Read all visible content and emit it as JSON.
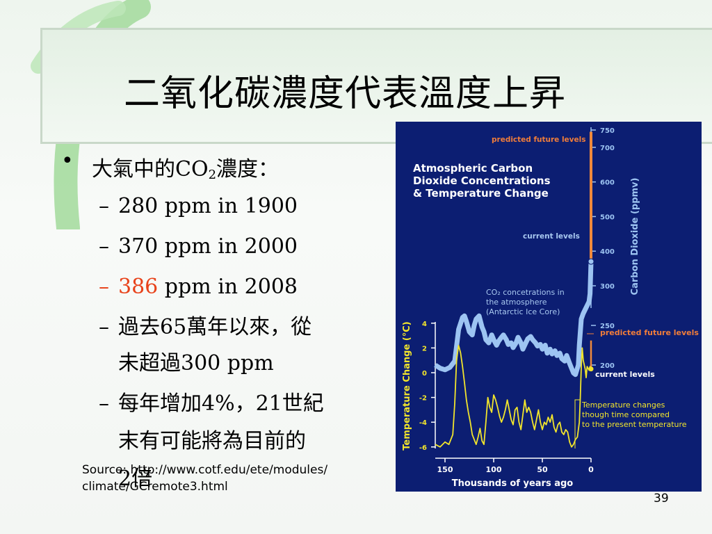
{
  "slide": {
    "title": "二氧化碳濃度代表溫度上昇",
    "bullet_main_prefix": "大氣中的CO",
    "bullet_main_subscript": "2",
    "bullet_main_suffix": "濃度：",
    "subitems": [
      {
        "dash": "–",
        "text": "280 ppm in 1900"
      },
      {
        "dash": "–",
        "text": "370 ppm in 2000"
      },
      {
        "dash": "–",
        "highlight": "386",
        "text": " ppm in 2008"
      },
      {
        "dash": "–",
        "line1": "過去65萬年以來，從",
        "line2": "未超過300 ppm"
      },
      {
        "dash": "–",
        "line1": "每年增加4%，21世紀",
        "line2": "末有可能將為目前的",
        "line3": "2倍"
      }
    ],
    "source_line1": "Source: http://www.cotf.edu/ete/modules/",
    "source_line2": "climate/GCremote3.html",
    "page_number": "39"
  },
  "chart_data": {
    "type": "line",
    "title_lines": [
      "Atmospheric Carbon",
      "Dioxide Concentrations",
      "& Temperature Change"
    ],
    "xlabel": "Thousands of years ago",
    "x_ticks": [
      150,
      100,
      50,
      0
    ],
    "xlim": [
      160,
      0
    ],
    "y_right_label": "Carbon Dioxide (ppmv)",
    "y_right_ticks": [
      200,
      250,
      300,
      400,
      500,
      600,
      700,
      750
    ],
    "y_left_label": "Temperature Change (°C)",
    "y_left_ticks": [
      "4",
      "2",
      "0",
      "-2",
      "-4",
      "-6"
    ],
    "y_left_values": [
      4,
      2,
      0,
      -2,
      -4,
      -6
    ],
    "annotations": {
      "co2_predicted": "predicted future levels",
      "co2_current": "current levels",
      "co2_series_line1": "CO₂ concetrations in",
      "co2_series_line2": "the atmosphere",
      "co2_series_line3": "(Antarctic Ice Core)",
      "temp_predicted": "predicted future levels",
      "temp_current": "current levels",
      "temp_note_line1": "Temperature changes",
      "temp_note_line2": "though time compared",
      "temp_note_line3": "to the present temperature"
    },
    "series": [
      {
        "label": "co2",
        "x": [
          160,
          155,
          150,
          145,
          140,
          136,
          132,
          130,
          128,
          125,
          122,
          120,
          118,
          115,
          112,
          110,
          108,
          105,
          102,
          100,
          97,
          95,
          92,
          90,
          87,
          85,
          82,
          80,
          77,
          75,
          72,
          70,
          67,
          65,
          62,
          60,
          57,
          55,
          52,
          50,
          47,
          45,
          42,
          40,
          37,
          35,
          32,
          30,
          27,
          25,
          22,
          20,
          18,
          16,
          15,
          13,
          12,
          10,
          8,
          6,
          4,
          2,
          1,
          0
        ],
        "y": [
          200,
          196,
          194,
          197,
          205,
          245,
          260,
          262,
          255,
          242,
          238,
          250,
          258,
          262,
          248,
          242,
          232,
          228,
          238,
          232,
          225,
          230,
          235,
          238,
          232,
          226,
          228,
          222,
          228,
          235,
          228,
          220,
          228,
          233,
          236,
          232,
          228,
          224,
          226,
          220,
          225,
          215,
          220,
          214,
          218,
          212,
          215,
          208,
          205,
          212,
          202,
          196,
          190,
          188,
          192,
          200,
          225,
          258,
          265,
          270,
          275,
          280,
          290,
          370
        ]
      },
      {
        "label": "co2-predicted",
        "x": [
          0,
          0,
          0
        ],
        "y": [
          370,
          550,
          745
        ]
      },
      {
        "label": "temperature",
        "x": [
          160,
          155,
          150,
          146,
          142,
          140,
          138,
          136,
          134,
          132,
          130,
          128,
          126,
          124,
          122,
          120,
          118,
          116,
          114,
          112,
          110,
          108,
          106,
          104,
          102,
          100,
          98,
          96,
          94,
          92,
          90,
          88,
          86,
          84,
          82,
          80,
          78,
          76,
          74,
          72,
          70,
          68,
          66,
          64,
          62,
          60,
          58,
          56,
          54,
          52,
          50,
          48,
          46,
          44,
          42,
          40,
          38,
          36,
          34,
          32,
          30,
          28,
          26,
          24,
          22,
          20,
          18,
          16,
          14,
          12,
          11,
          10,
          9,
          8,
          6,
          5,
          4,
          2,
          1,
          0
        ],
        "y": [
          -5.8,
          -6,
          -5.6,
          -5.8,
          -5,
          -2.5,
          1.2,
          2.2,
          1.6,
          0.5,
          -0.8,
          -2.2,
          -3.2,
          -4,
          -5,
          -5.4,
          -5.8,
          -5.2,
          -4.5,
          -5.5,
          -5.8,
          -4,
          -2,
          -2.8,
          -3.2,
          -1.8,
          -2.2,
          -2.8,
          -3.5,
          -4,
          -3.6,
          -3,
          -2.2,
          -3,
          -3.8,
          -4.2,
          -3,
          -2.8,
          -4,
          -4.6,
          -3.4,
          -2.2,
          -3.2,
          -2.8,
          -3.2,
          -4,
          -4.6,
          -3.8,
          -3,
          -4,
          -4.6,
          -4,
          -4.2,
          -3.6,
          -4,
          -3.4,
          -4.4,
          -4.8,
          -4.2,
          -4,
          -4.8,
          -5,
          -4.6,
          -4.8,
          -5.6,
          -6,
          -5.8,
          -5.4,
          -5.2,
          -4,
          -2,
          0.5,
          2,
          1,
          0.3,
          -0.4,
          0.5,
          0.2,
          0.5,
          0.3
        ]
      },
      {
        "label": "temp-predicted",
        "x": [
          0,
          0,
          0
        ],
        "y": [
          0.3,
          1.8,
          2.6
        ]
      }
    ],
    "colors": {
      "background": "#0c1e72",
      "co2": "#9dc4f2",
      "temperature": "#f2e52c",
      "predicted": "#f08a3c",
      "annotation_orange": "#f07d3a",
      "annotation_blue": "#a8c8f0",
      "title_text": "#ffffff"
    }
  }
}
